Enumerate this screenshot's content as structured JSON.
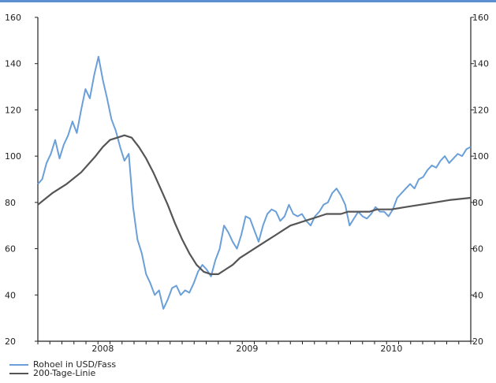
{
  "chart_data": {
    "type": "line",
    "ylim": [
      20,
      160
    ],
    "y_ticks": [
      20,
      40,
      60,
      80,
      100,
      120,
      140,
      160
    ],
    "y_tick_labels_left": [
      "20",
      "40",
      "60",
      "80",
      "100",
      "120",
      "140",
      "160"
    ],
    "y_tick_labels_right": [
      "20",
      "40",
      "60",
      "80",
      "100",
      "120",
      "140",
      "160"
    ],
    "x_tick_labels": [
      "2008",
      "2009",
      "2010"
    ],
    "x_label_positions": [
      2008.0,
      2009.0,
      2010.0
    ],
    "xlim": [
      2007.55,
      2010.55
    ],
    "grid": false,
    "legend_position": "bottom-left",
    "series": [
      {
        "name": "Rohoel in USD/Fass",
        "color": "#6a9fd8",
        "x": [
          2007.55,
          2007.58,
          2007.61,
          2007.64,
          2007.67,
          2007.7,
          2007.73,
          2007.76,
          2007.79,
          2007.82,
          2007.85,
          2007.88,
          2007.91,
          2007.94,
          2007.97,
          2008.0,
          2008.03,
          2008.06,
          2008.09,
          2008.12,
          2008.15,
          2008.18,
          2008.21,
          2008.24,
          2008.27,
          2008.3,
          2008.33,
          2008.36,
          2008.39,
          2008.42,
          2008.45,
          2008.48,
          2008.51,
          2008.54,
          2008.57,
          2008.6,
          2008.63,
          2008.66,
          2008.69,
          2008.72,
          2008.75,
          2008.78,
          2008.81,
          2008.84,
          2008.87,
          2008.9,
          2008.93,
          2008.96,
          2008.99,
          2009.02,
          2009.05,
          2009.08,
          2009.11,
          2009.14,
          2009.17,
          2009.2,
          2009.23,
          2009.26,
          2009.29,
          2009.32,
          2009.35,
          2009.38,
          2009.41,
          2009.44,
          2009.47,
          2009.5,
          2009.53,
          2009.56,
          2009.59,
          2009.62,
          2009.65,
          2009.68,
          2009.71,
          2009.74,
          2009.77,
          2009.8,
          2009.83,
          2009.86,
          2009.89,
          2009.92,
          2009.95,
          2009.98,
          2010.01,
          2010.04,
          2010.07,
          2010.1,
          2010.13,
          2010.16,
          2010.19,
          2010.22,
          2010.25,
          2010.28,
          2010.31,
          2010.34,
          2010.37,
          2010.4,
          2010.43,
          2010.46,
          2010.49,
          2010.52,
          2010.55
        ],
        "y": [
          88,
          90,
          97,
          101,
          107,
          99,
          105,
          109,
          115,
          110,
          120,
          129,
          125,
          135,
          143,
          133,
          125,
          116,
          111,
          104,
          98,
          101,
          78,
          64,
          58,
          49,
          45,
          40,
          42,
          34,
          38,
          43,
          44,
          40,
          42,
          41,
          45,
          50,
          53,
          51,
          48,
          55,
          60,
          70,
          67,
          63,
          60,
          66,
          74,
          73,
          68,
          63,
          70,
          75,
          77,
          76,
          72,
          74,
          79,
          75,
          74,
          75,
          72,
          70,
          74,
          76,
          79,
          80,
          84,
          86,
          83,
          79,
          70,
          73,
          76,
          74,
          73,
          75,
          78,
          76,
          76,
          74,
          77,
          82,
          84,
          86,
          88,
          86,
          90,
          91,
          94,
          96,
          95,
          98,
          100,
          97,
          99,
          101,
          100,
          103,
          104
        ]
      },
      {
        "name": "200-Tage-Linie",
        "color": "#555555",
        "x": [
          2007.55,
          2007.65,
          2007.75,
          2007.85,
          2007.95,
          2008.0,
          2008.05,
          2008.1,
          2008.15,
          2008.2,
          2008.25,
          2008.3,
          2008.35,
          2008.4,
          2008.45,
          2008.5,
          2008.55,
          2008.6,
          2008.65,
          2008.7,
          2008.75,
          2008.8,
          2008.85,
          2008.9,
          2008.95,
          2009.0,
          2009.05,
          2009.1,
          2009.15,
          2009.2,
          2009.25,
          2009.3,
          2009.35,
          2009.4,
          2009.45,
          2009.5,
          2009.55,
          2009.6,
          2009.65,
          2009.7,
          2009.75,
          2009.8,
          2009.85,
          2009.9,
          2009.95,
          2010.0,
          2010.1,
          2010.2,
          2010.3,
          2010.4,
          2010.55
        ],
        "y": [
          79,
          84,
          88,
          93,
          100,
          104,
          107,
          108,
          109,
          108,
          104,
          99,
          93,
          86,
          79,
          71,
          64,
          58,
          53,
          50,
          49,
          49,
          51,
          53,
          56,
          58,
          60,
          62,
          64,
          66,
          68,
          70,
          71,
          72,
          73,
          74,
          75,
          75,
          75,
          76,
          76,
          76,
          76,
          77,
          77,
          77,
          78,
          79,
          80,
          81,
          82
        ]
      }
    ]
  }
}
